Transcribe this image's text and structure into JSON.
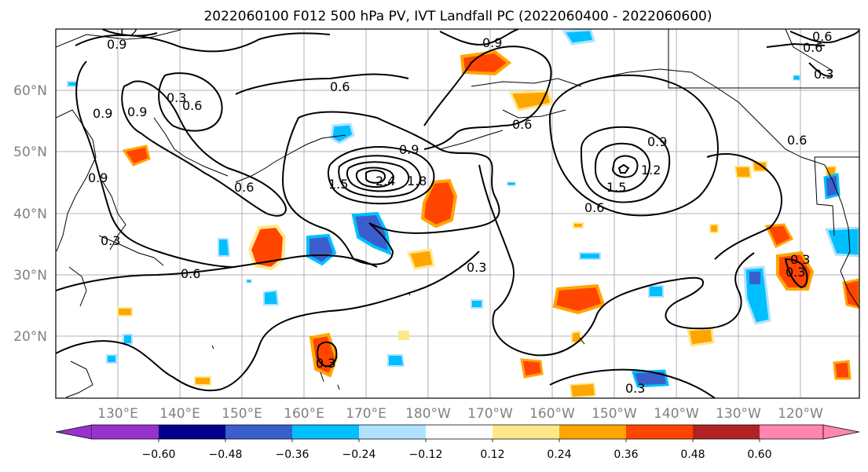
{
  "title": "2022060100 F012 500 hPa PV, IVT Landfall PC (2022060400 - 2022060600)",
  "lat_labels": [
    "60°N",
    "50°N",
    "40°N",
    "30°N",
    "20°N"
  ],
  "lon_labels": [
    "130°E",
    "140°E",
    "150°E",
    "160°E",
    "170°E",
    "180°W",
    "170°W",
    "160°W",
    "150°W",
    "140°W",
    "130°W",
    "120°W"
  ],
  "colorbar": {
    "ticks": [
      "−0.60",
      "−0.48",
      "−0.36",
      "−0.24",
      "−0.12",
      "0.12",
      "0.24",
      "0.36",
      "0.48",
      "0.60"
    ],
    "colors": [
      "#9932cc",
      "#00008b",
      "#3a5fcd",
      "#00bfff",
      "#b0e2ff",
      "#ffffff",
      "#ffe88a",
      "#ffa500",
      "#ff4500",
      "#b22222",
      "#ff86b0"
    ]
  },
  "contour_labels": [
    "1.2",
    "0.9",
    "0.3",
    "0.9",
    "0.6",
    "0.9",
    "0.6",
    "0.9",
    "0.6",
    "0.9",
    "0.3",
    "0.6",
    "0.6",
    "1.5",
    "2.4",
    "1.8",
    "0.9",
    "1.5",
    "1.2",
    "0.9",
    "0.6",
    "0.6",
    "0.3",
    "0.6",
    "0.3",
    "0.3",
    "0.3",
    "0.3",
    "0.6",
    "0.3"
  ]
}
